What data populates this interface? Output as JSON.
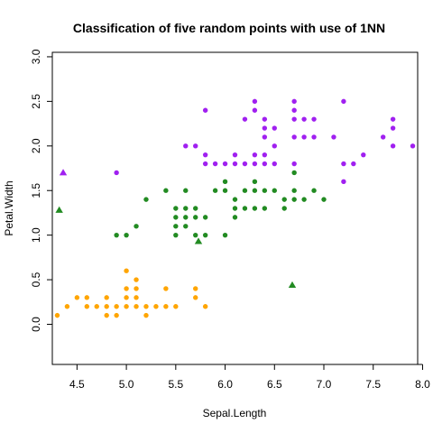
{
  "chart_data": {
    "type": "scatter",
    "title": "Classification of five random points with use of 1NN",
    "xlabel": "Sepal.Length",
    "ylabel": "Petal.Width",
    "xlim": [
      4.25,
      7.95
    ],
    "ylim": [
      -0.45,
      3.05
    ],
    "xticks": [
      "4.5",
      "5.0",
      "5.5",
      "6.0",
      "6.5",
      "7.0",
      "7.5",
      "8.0"
    ],
    "yticks": [
      "0.0",
      "0.5",
      "1.0",
      "1.5",
      "2.0",
      "2.5",
      "3.0"
    ],
    "grid": false,
    "colors": {
      "setosa": "#FFA500",
      "versicolor": "#228B22",
      "virginica": "#A020F0"
    },
    "series": [
      {
        "color": "#FFA500",
        "marker": "circle",
        "points": [
          [
            4.3,
            0.1
          ],
          [
            4.4,
            0.2
          ],
          [
            4.5,
            0.3
          ],
          [
            4.6,
            0.2
          ],
          [
            4.6,
            0.3
          ],
          [
            4.7,
            0.2
          ],
          [
            4.8,
            0.1
          ],
          [
            4.8,
            0.2
          ],
          [
            4.8,
            0.3
          ],
          [
            4.9,
            0.1
          ],
          [
            4.9,
            0.2
          ],
          [
            5.0,
            0.2
          ],
          [
            5.0,
            0.3
          ],
          [
            5.0,
            0.4
          ],
          [
            5.0,
            0.6
          ],
          [
            5.1,
            0.2
          ],
          [
            5.1,
            0.3
          ],
          [
            5.1,
            0.4
          ],
          [
            5.1,
            0.5
          ],
          [
            5.2,
            0.1
          ],
          [
            5.2,
            0.2
          ],
          [
            5.3,
            0.2
          ],
          [
            5.4,
            0.2
          ],
          [
            5.4,
            0.4
          ],
          [
            5.5,
            0.2
          ],
          [
            5.7,
            0.3
          ],
          [
            5.7,
            0.4
          ],
          [
            5.8,
            0.2
          ]
        ]
      },
      {
        "color": "#228B22",
        "marker": "circle",
        "points": [
          [
            4.9,
            1.0
          ],
          [
            5.0,
            1.0
          ],
          [
            5.1,
            1.1
          ],
          [
            5.2,
            1.4
          ],
          [
            5.4,
            1.5
          ],
          [
            5.5,
            1.0
          ],
          [
            5.5,
            1.1
          ],
          [
            5.5,
            1.2
          ],
          [
            5.5,
            1.3
          ],
          [
            5.6,
            1.1
          ],
          [
            5.6,
            1.2
          ],
          [
            5.6,
            1.3
          ],
          [
            5.6,
            1.5
          ],
          [
            5.7,
            1.0
          ],
          [
            5.7,
            1.2
          ],
          [
            5.7,
            1.3
          ],
          [
            5.8,
            1.0
          ],
          [
            5.8,
            1.2
          ],
          [
            5.9,
            1.5
          ],
          [
            6.0,
            1.0
          ],
          [
            6.0,
            1.5
          ],
          [
            6.0,
            1.6
          ],
          [
            6.1,
            1.2
          ],
          [
            6.1,
            1.3
          ],
          [
            6.1,
            1.4
          ],
          [
            6.2,
            1.3
          ],
          [
            6.2,
            1.5
          ],
          [
            6.3,
            1.3
          ],
          [
            6.3,
            1.5
          ],
          [
            6.3,
            1.6
          ],
          [
            6.4,
            1.3
          ],
          [
            6.4,
            1.5
          ],
          [
            6.5,
            1.5
          ],
          [
            6.6,
            1.3
          ],
          [
            6.6,
            1.4
          ],
          [
            6.7,
            1.4
          ],
          [
            6.7,
            1.5
          ],
          [
            6.7,
            1.7
          ],
          [
            6.8,
            1.4
          ],
          [
            6.9,
            1.5
          ],
          [
            7.0,
            1.4
          ]
        ]
      },
      {
        "color": "#A020F0",
        "marker": "circle",
        "points": [
          [
            4.9,
            1.7
          ],
          [
            5.6,
            2.0
          ],
          [
            5.7,
            2.0
          ],
          [
            5.8,
            1.8
          ],
          [
            5.8,
            1.9
          ],
          [
            5.8,
            2.4
          ],
          [
            5.9,
            1.8
          ],
          [
            6.0,
            1.8
          ],
          [
            6.1,
            1.8
          ],
          [
            6.1,
            1.9
          ],
          [
            6.2,
            1.8
          ],
          [
            6.2,
            2.3
          ],
          [
            6.3,
            1.8
          ],
          [
            6.3,
            1.9
          ],
          [
            6.3,
            2.4
          ],
          [
            6.3,
            2.5
          ],
          [
            6.4,
            1.8
          ],
          [
            6.4,
            1.9
          ],
          [
            6.4,
            2.1
          ],
          [
            6.4,
            2.2
          ],
          [
            6.4,
            2.3
          ],
          [
            6.5,
            1.8
          ],
          [
            6.5,
            2.0
          ],
          [
            6.5,
            2.2
          ],
          [
            6.7,
            1.8
          ],
          [
            6.7,
            2.1
          ],
          [
            6.7,
            2.3
          ],
          [
            6.7,
            2.4
          ],
          [
            6.7,
            2.5
          ],
          [
            6.8,
            2.1
          ],
          [
            6.8,
            2.3
          ],
          [
            6.9,
            2.1
          ],
          [
            6.9,
            2.3
          ],
          [
            7.1,
            2.1
          ],
          [
            7.2,
            1.6
          ],
          [
            7.2,
            1.8
          ],
          [
            7.2,
            2.5
          ],
          [
            7.3,
            1.8
          ],
          [
            7.4,
            1.9
          ],
          [
            7.6,
            2.1
          ],
          [
            7.7,
            2.0
          ],
          [
            7.7,
            2.2
          ],
          [
            7.7,
            2.3
          ],
          [
            7.9,
            2.0
          ]
        ]
      },
      {
        "marker": "triangle",
        "points": [
          {
            "x": 4.36,
            "y": 1.7,
            "color": "#A020F0"
          },
          {
            "x": 4.32,
            "y": 1.28,
            "color": "#228B22"
          },
          {
            "x": 5.73,
            "y": 0.93,
            "color": "#228B22"
          },
          {
            "x": 6.68,
            "y": 0.44,
            "color": "#228B22"
          }
        ]
      }
    ]
  }
}
